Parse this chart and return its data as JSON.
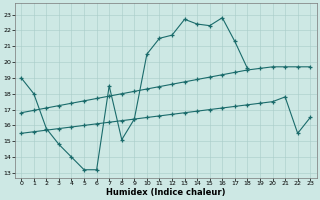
{
  "bg_color": "#cde8e4",
  "line_color": "#1a6b6b",
  "xlabel": "Humidex (Indice chaleur)",
  "xlim": [
    -0.5,
    23.5
  ],
  "ylim": [
    12.7,
    23.7
  ],
  "yticks": [
    13,
    14,
    15,
    16,
    17,
    18,
    19,
    20,
    21,
    22,
    23
  ],
  "xticks": [
    0,
    1,
    2,
    3,
    4,
    5,
    6,
    7,
    8,
    9,
    10,
    11,
    12,
    13,
    14,
    15,
    16,
    17,
    18,
    19,
    20,
    21,
    22,
    23
  ],
  "line1_x": [
    0,
    1,
    2,
    3,
    4,
    5,
    6,
    7,
    8,
    9,
    10,
    11,
    12,
    13,
    14,
    15,
    16,
    17,
    18
  ],
  "line1_y": [
    19.0,
    18.0,
    15.8,
    14.8,
    14.0,
    13.2,
    13.2,
    18.5,
    15.1,
    16.4,
    20.5,
    21.5,
    21.7,
    22.7,
    22.4,
    22.3,
    22.8,
    21.3,
    19.6
  ],
  "line2_x": [
    0,
    1,
    2,
    3,
    4,
    5,
    6,
    7,
    8,
    9,
    10,
    11,
    12,
    13,
    14,
    15,
    16,
    17,
    18,
    19,
    20,
    21,
    22,
    23
  ],
  "line2_y": [
    15.5,
    15.6,
    15.7,
    15.8,
    15.9,
    16.0,
    16.1,
    16.2,
    16.3,
    16.4,
    16.5,
    16.6,
    16.7,
    16.8,
    16.9,
    17.0,
    17.1,
    17.2,
    17.3,
    17.4,
    17.5,
    17.8,
    15.5,
    16.5
  ],
  "line3_x": [
    0,
    1,
    2,
    3,
    4,
    5,
    6,
    7,
    8,
    9,
    10,
    11,
    12,
    13,
    14,
    15,
    16,
    17,
    18,
    19,
    20,
    21,
    22,
    23
  ],
  "line3_y": [
    16.8,
    16.95,
    17.1,
    17.25,
    17.4,
    17.55,
    17.7,
    17.85,
    18.0,
    18.15,
    18.3,
    18.45,
    18.6,
    18.75,
    18.9,
    19.05,
    19.2,
    19.35,
    19.5,
    19.6,
    19.7,
    19.7,
    19.7,
    19.7
  ]
}
